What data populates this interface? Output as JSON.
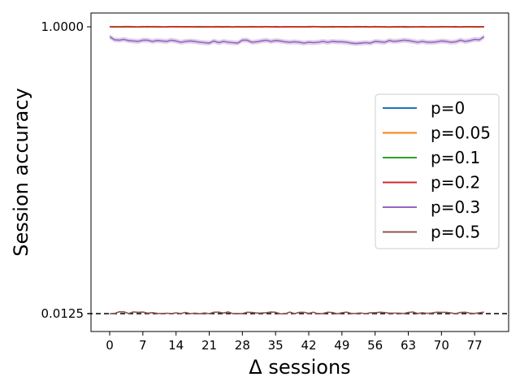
{
  "chart_data": {
    "type": "line",
    "xlabel": "Δ sessions",
    "ylabel": "Session accuracy",
    "xlim": [
      -4,
      82
    ],
    "ylim": [
      0.0125,
      1.0
    ],
    "y_scale": "log",
    "xticks": [
      0,
      7,
      14,
      21,
      28,
      35,
      42,
      49,
      56,
      63,
      70,
      77
    ],
    "xtick_labels": [
      "0",
      "7",
      "14",
      "21",
      "28",
      "35",
      "42",
      "49",
      "56",
      "63",
      "70",
      "77"
    ],
    "yticks": [
      0.0125,
      1.0
    ],
    "ytick_labels": [
      "0.0125",
      "1.0000"
    ],
    "reference_line": {
      "y": 0.0125,
      "style": "dashed",
      "color": "#000000"
    },
    "legend_position": "center-right",
    "series": [
      {
        "name": "p=0",
        "color": "#1f77b4",
        "x_start": 0,
        "x_end": 79,
        "base_value": 1.0,
        "level": "top"
      },
      {
        "name": "p=0.05",
        "color": "#ff7f0e",
        "x_start": 0,
        "x_end": 79,
        "base_value": 1.0,
        "level": "top"
      },
      {
        "name": "p=0.1",
        "color": "#2ca02c",
        "x_start": 0,
        "x_end": 79,
        "base_value": 1.0,
        "level": "top"
      },
      {
        "name": "p=0.2",
        "color": "#d62728",
        "x_start": 0,
        "x_end": 79,
        "base_value": 1.0,
        "level": "top"
      },
      {
        "name": "p=0.3",
        "color": "#9467bd",
        "x_start": 0,
        "x_end": 79,
        "values": [
          0.86,
          0.82,
          0.815,
          0.825,
          0.81,
          0.805,
          0.8,
          0.815,
          0.815,
          0.8,
          0.81,
          0.805,
          0.8,
          0.815,
          0.805,
          0.79,
          0.8,
          0.805,
          0.8,
          0.79,
          0.785,
          0.78,
          0.805,
          0.785,
          0.8,
          0.79,
          0.785,
          0.78,
          0.815,
          0.815,
          0.79,
          0.795,
          0.805,
          0.815,
          0.8,
          0.81,
          0.805,
          0.795,
          0.79,
          0.795,
          0.79,
          0.78,
          0.79,
          0.785,
          0.79,
          0.8,
          0.79,
          0.8,
          0.795,
          0.795,
          0.79,
          0.78,
          0.775,
          0.78,
          0.785,
          0.78,
          0.8,
          0.795,
          0.79,
          0.81,
          0.8,
          0.805,
          0.815,
          0.81,
          0.8,
          0.79,
          0.8,
          0.79,
          0.79,
          0.795,
          0.805,
          0.8,
          0.79,
          0.795,
          0.815,
          0.8,
          0.81,
          0.825,
          0.82,
          0.86
        ],
        "band": true
      },
      {
        "name": "p=0.5",
        "color": "#8c564b",
        "x_start": 0,
        "x_end": 79,
        "base_value": 0.0125,
        "level": "bottom"
      }
    ]
  }
}
